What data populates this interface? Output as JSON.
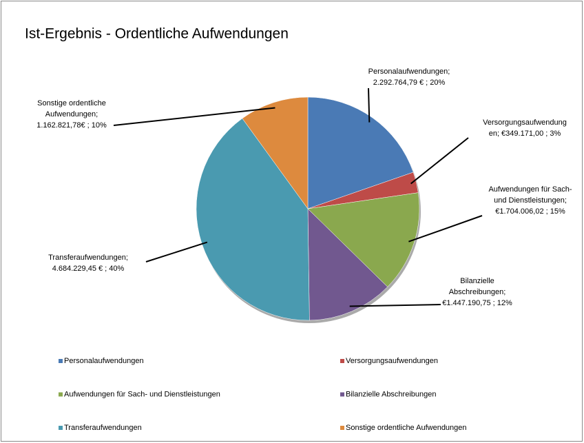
{
  "chart_data": {
    "type": "pie",
    "title": "Ist-Ergebnis - Ordentliche Aufwendungen",
    "categories": [
      "Personalaufwendungen",
      "Versorgungsaufwendungen",
      "Aufwendungen für Sach- und Dienstleistungen",
      "Bilanzielle Abschreibungen",
      "Transferaufwendungen",
      "Sonstige ordentliche Aufwendungen"
    ],
    "values": [
      2292764.79,
      349171.0,
      1704006.02,
      1447190.75,
      4684229.45,
      1162821.78
    ],
    "value_labels": [
      [
        "Personalaufwendungen;",
        "2.292.764,79 € ; 20%"
      ],
      [
        "Versorgungsaufwendung",
        "en;  €349.171,00 ; 3%"
      ],
      [
        "Aufwendungen für Sach-",
        "und Dienstleistungen;",
        "€1.704.006,02 ; 15%"
      ],
      [
        "Bilanzielle",
        "Abschreibungen;",
        "€1.447.190,75 ; 12%"
      ],
      [
        "Transferaufwendungen;",
        "4.684.229,45 € ; 40%"
      ],
      [
        "Sonstige ordentliche",
        "Aufwendungen;",
        "1.162.821,78€ ; 10%"
      ]
    ],
    "colors": [
      "#4a7ab5",
      "#be4b48",
      "#8aa84e",
      "#71588f",
      "#4a9ab0",
      "#dd8a3e"
    ],
    "legend": "bottom"
  }
}
